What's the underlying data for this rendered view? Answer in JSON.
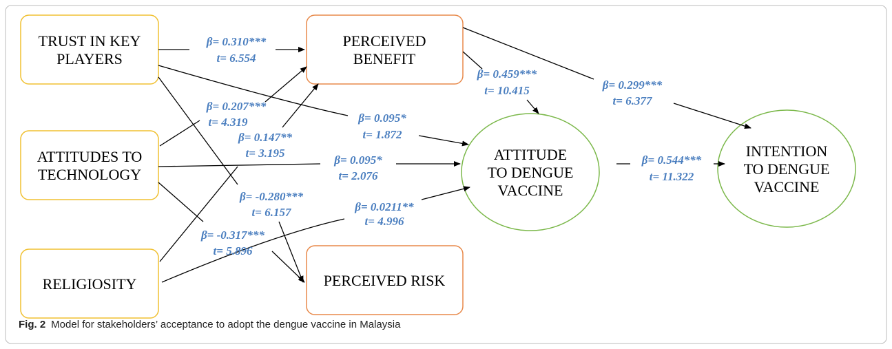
{
  "nodes": [
    {
      "label": [
        "TRUST IN KEY",
        "PLAYERS"
      ]
    },
    {
      "label": [
        "ATTITUDES TO",
        "TECHNOLOGY"
      ]
    },
    {
      "label": [
        "RELIGIOSITY"
      ]
    },
    {
      "label": [
        "PERCEIVED",
        "BENEFIT"
      ]
    },
    {
      "label": [
        "PERCEIVED RISK"
      ]
    },
    {
      "label": [
        "ATTITUDE",
        "TO DENGUE",
        "VACCINE"
      ]
    },
    {
      "label": [
        "INTENTION",
        "TO DENGUE",
        "VACCINE"
      ]
    }
  ],
  "edges": [
    {
      "beta": "β= 0.310***",
      "t": "t= 6.554"
    },
    {
      "beta": "β= 0.207***",
      "t": "t= 4.319"
    },
    {
      "beta": "β= 0.147**",
      "t": "t= 3.195"
    },
    {
      "beta": "β= 0.095*",
      "t": "t= 1.872"
    },
    {
      "beta": "β= 0.095*",
      "t": "t= 2.076"
    },
    {
      "beta": "β= -0.280***",
      "t": "t= 6.157"
    },
    {
      "beta": "β= -0.317***",
      "t": "t= 5.896"
    },
    {
      "beta": "β= 0.0211**",
      "t": "t= 4.996"
    },
    {
      "beta": "β= 0.459***",
      "t": "t= 10.415"
    },
    {
      "beta": "β= 0.299***",
      "t": "t= 6.377"
    },
    {
      "beta": "β= 0.544***",
      "t": "t= 11.322"
    }
  ],
  "caption": {
    "label": "Fig. 2",
    "text": "Model for stakeholders’ acceptance to adopt the dengue vaccine in Malaysia"
  }
}
